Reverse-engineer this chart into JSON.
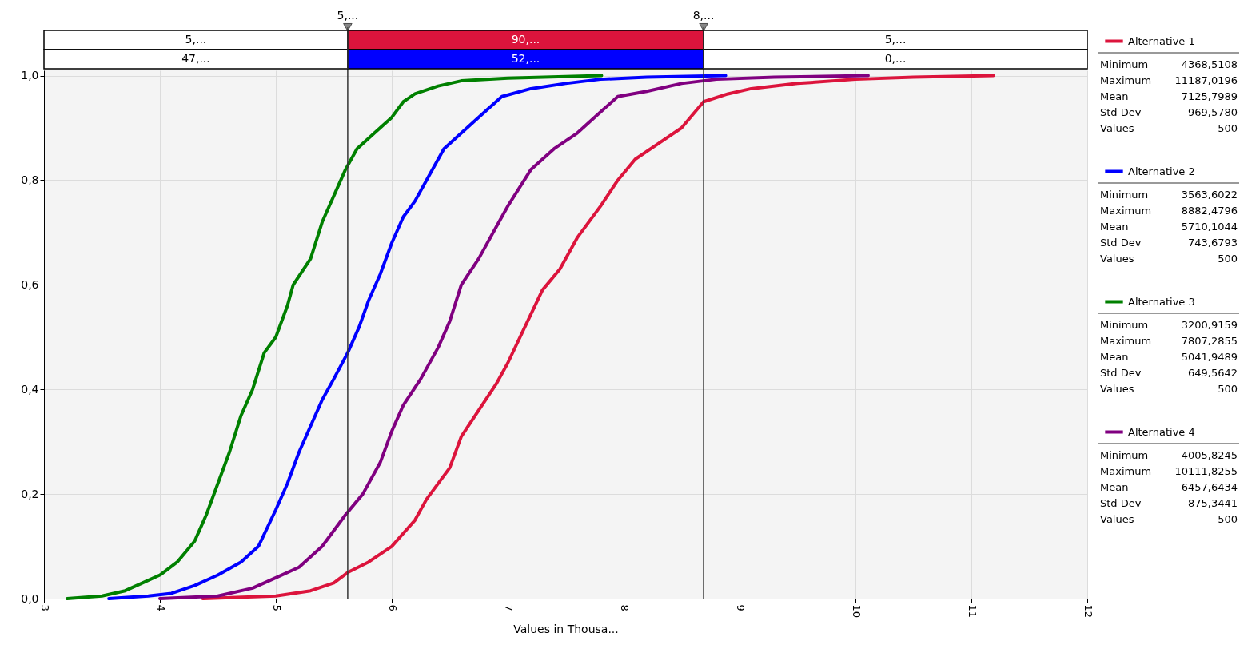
{
  "chart_data": {
    "type": "line",
    "xlabel": "Values in Thousa...",
    "xlim": [
      3,
      12
    ],
    "xticks": [
      3,
      4,
      5,
      6,
      7,
      8,
      9,
      10,
      11,
      12
    ],
    "ylim": [
      0,
      1.01
    ],
    "yticks": [
      {
        "value": 0,
        "label": "0,0"
      },
      {
        "value": 0.2,
        "label": "0,2"
      },
      {
        "value": 0.4,
        "label": "0,4"
      },
      {
        "value": 0.6,
        "label": "0,6"
      },
      {
        "value": 0.8,
        "label": "0,8"
      },
      {
        "value": 1,
        "label": "1,0"
      }
    ],
    "grid": true,
    "legend": "right",
    "line_style": "solid",
    "marker": "none",
    "ref_lines": [
      {
        "axis": "x",
        "value": 5.62
      },
      {
        "axis": "x",
        "value": 8.69
      }
    ],
    "annotations": [
      "5,...",
      "90,...",
      "5,...",
      "47,...",
      "52,...",
      "0,...",
      "Minimum",
      "4368,5108",
      "Maximum",
      "11187,0196",
      "Mean",
      "7125,7989",
      "Std Dev",
      "969,5780",
      "Values",
      "500",
      "Minimum",
      "3563,6022",
      "Maximum",
      "8882,4796",
      "Mean",
      "5710,1044",
      "Std Dev",
      "743,6793",
      "Values",
      "500",
      "Minimum",
      "3200,9159",
      "Maximum",
      "7807,2855",
      "Mean",
      "5041,9489",
      "Std Dev",
      "649,5642",
      "Values",
      "500",
      "Minimum",
      "4005,8245",
      "Maximum",
      "10111,8255",
      "Mean",
      "6457,6434",
      "Std Dev",
      "875,3441",
      "Values",
      "500",
      {
        "text": "5,...",
        "x": 5.62
      },
      {
        "text": "8,...",
        "x": 8.69
      }
    ],
    "series": [
      {
        "name": "Alternative 1",
        "color": "#dc143c",
        "x": [
          4.37,
          5.0,
          5.3,
          5.5,
          5.62,
          5.8,
          6.0,
          6.2,
          6.3,
          6.5,
          6.6,
          6.75,
          6.9,
          7.0,
          7.15,
          7.3,
          7.45,
          7.6,
          7.8,
          7.95,
          8.1,
          8.3,
          8.5,
          8.69,
          8.9,
          9.1,
          9.5,
          10.0,
          10.5,
          11.19
        ],
        "values": [
          0,
          0.005,
          0.015,
          0.03,
          0.05,
          0.07,
          0.1,
          0.15,
          0.19,
          0.25,
          0.31,
          0.36,
          0.41,
          0.45,
          0.52,
          0.59,
          0.63,
          0.69,
          0.75,
          0.8,
          0.84,
          0.87,
          0.9,
          0.95,
          0.965,
          0.975,
          0.985,
          0.993,
          0.997,
          1.0
        ]
      },
      {
        "name": "Alternative 2",
        "color": "#0000ff",
        "x": [
          3.56,
          3.9,
          4.1,
          4.3,
          4.5,
          4.7,
          4.85,
          5.0,
          5.1,
          5.2,
          5.3,
          5.4,
          5.5,
          5.62,
          5.72,
          5.8,
          5.9,
          6.0,
          6.1,
          6.2,
          6.3,
          6.45,
          6.6,
          6.8,
          6.95,
          7.2,
          7.5,
          7.8,
          8.2,
          8.88
        ],
        "values": [
          0,
          0.005,
          0.01,
          0.025,
          0.045,
          0.07,
          0.1,
          0.17,
          0.22,
          0.28,
          0.33,
          0.38,
          0.42,
          0.47,
          0.52,
          0.57,
          0.62,
          0.68,
          0.73,
          0.76,
          0.8,
          0.86,
          0.89,
          0.93,
          0.96,
          0.975,
          0.985,
          0.993,
          0.997,
          1.0
        ]
      },
      {
        "name": "Alternative 3",
        "color": "#008000",
        "x": [
          3.2,
          3.5,
          3.7,
          3.85,
          4.0,
          4.15,
          4.3,
          4.4,
          4.5,
          4.6,
          4.7,
          4.8,
          4.9,
          5.0,
          5.1,
          5.15,
          5.3,
          5.4,
          5.5,
          5.6,
          5.7,
          5.85,
          6.0,
          6.1,
          6.2,
          6.4,
          6.6,
          7.0,
          7.5,
          7.81
        ],
        "values": [
          0,
          0.005,
          0.015,
          0.03,
          0.045,
          0.07,
          0.11,
          0.16,
          0.22,
          0.28,
          0.35,
          0.4,
          0.47,
          0.5,
          0.56,
          0.6,
          0.65,
          0.72,
          0.77,
          0.82,
          0.86,
          0.89,
          0.92,
          0.95,
          0.965,
          0.98,
          0.99,
          0.995,
          0.998,
          1.0
        ]
      },
      {
        "name": "Alternative 4",
        "color": "#800080",
        "x": [
          4.0,
          4.5,
          4.8,
          5.0,
          5.2,
          5.4,
          5.6,
          5.75,
          5.9,
          6.0,
          6.1,
          6.25,
          6.4,
          6.5,
          6.6,
          6.75,
          6.9,
          7.0,
          7.2,
          7.4,
          7.6,
          7.8,
          7.95,
          8.2,
          8.5,
          8.8,
          9.3,
          10.11
        ],
        "values": [
          0,
          0.005,
          0.02,
          0.04,
          0.06,
          0.1,
          0.16,
          0.2,
          0.26,
          0.32,
          0.37,
          0.42,
          0.48,
          0.53,
          0.6,
          0.65,
          0.71,
          0.75,
          0.82,
          0.86,
          0.89,
          0.93,
          0.96,
          0.97,
          0.985,
          0.993,
          0.997,
          1.0
        ]
      }
    ]
  }
}
